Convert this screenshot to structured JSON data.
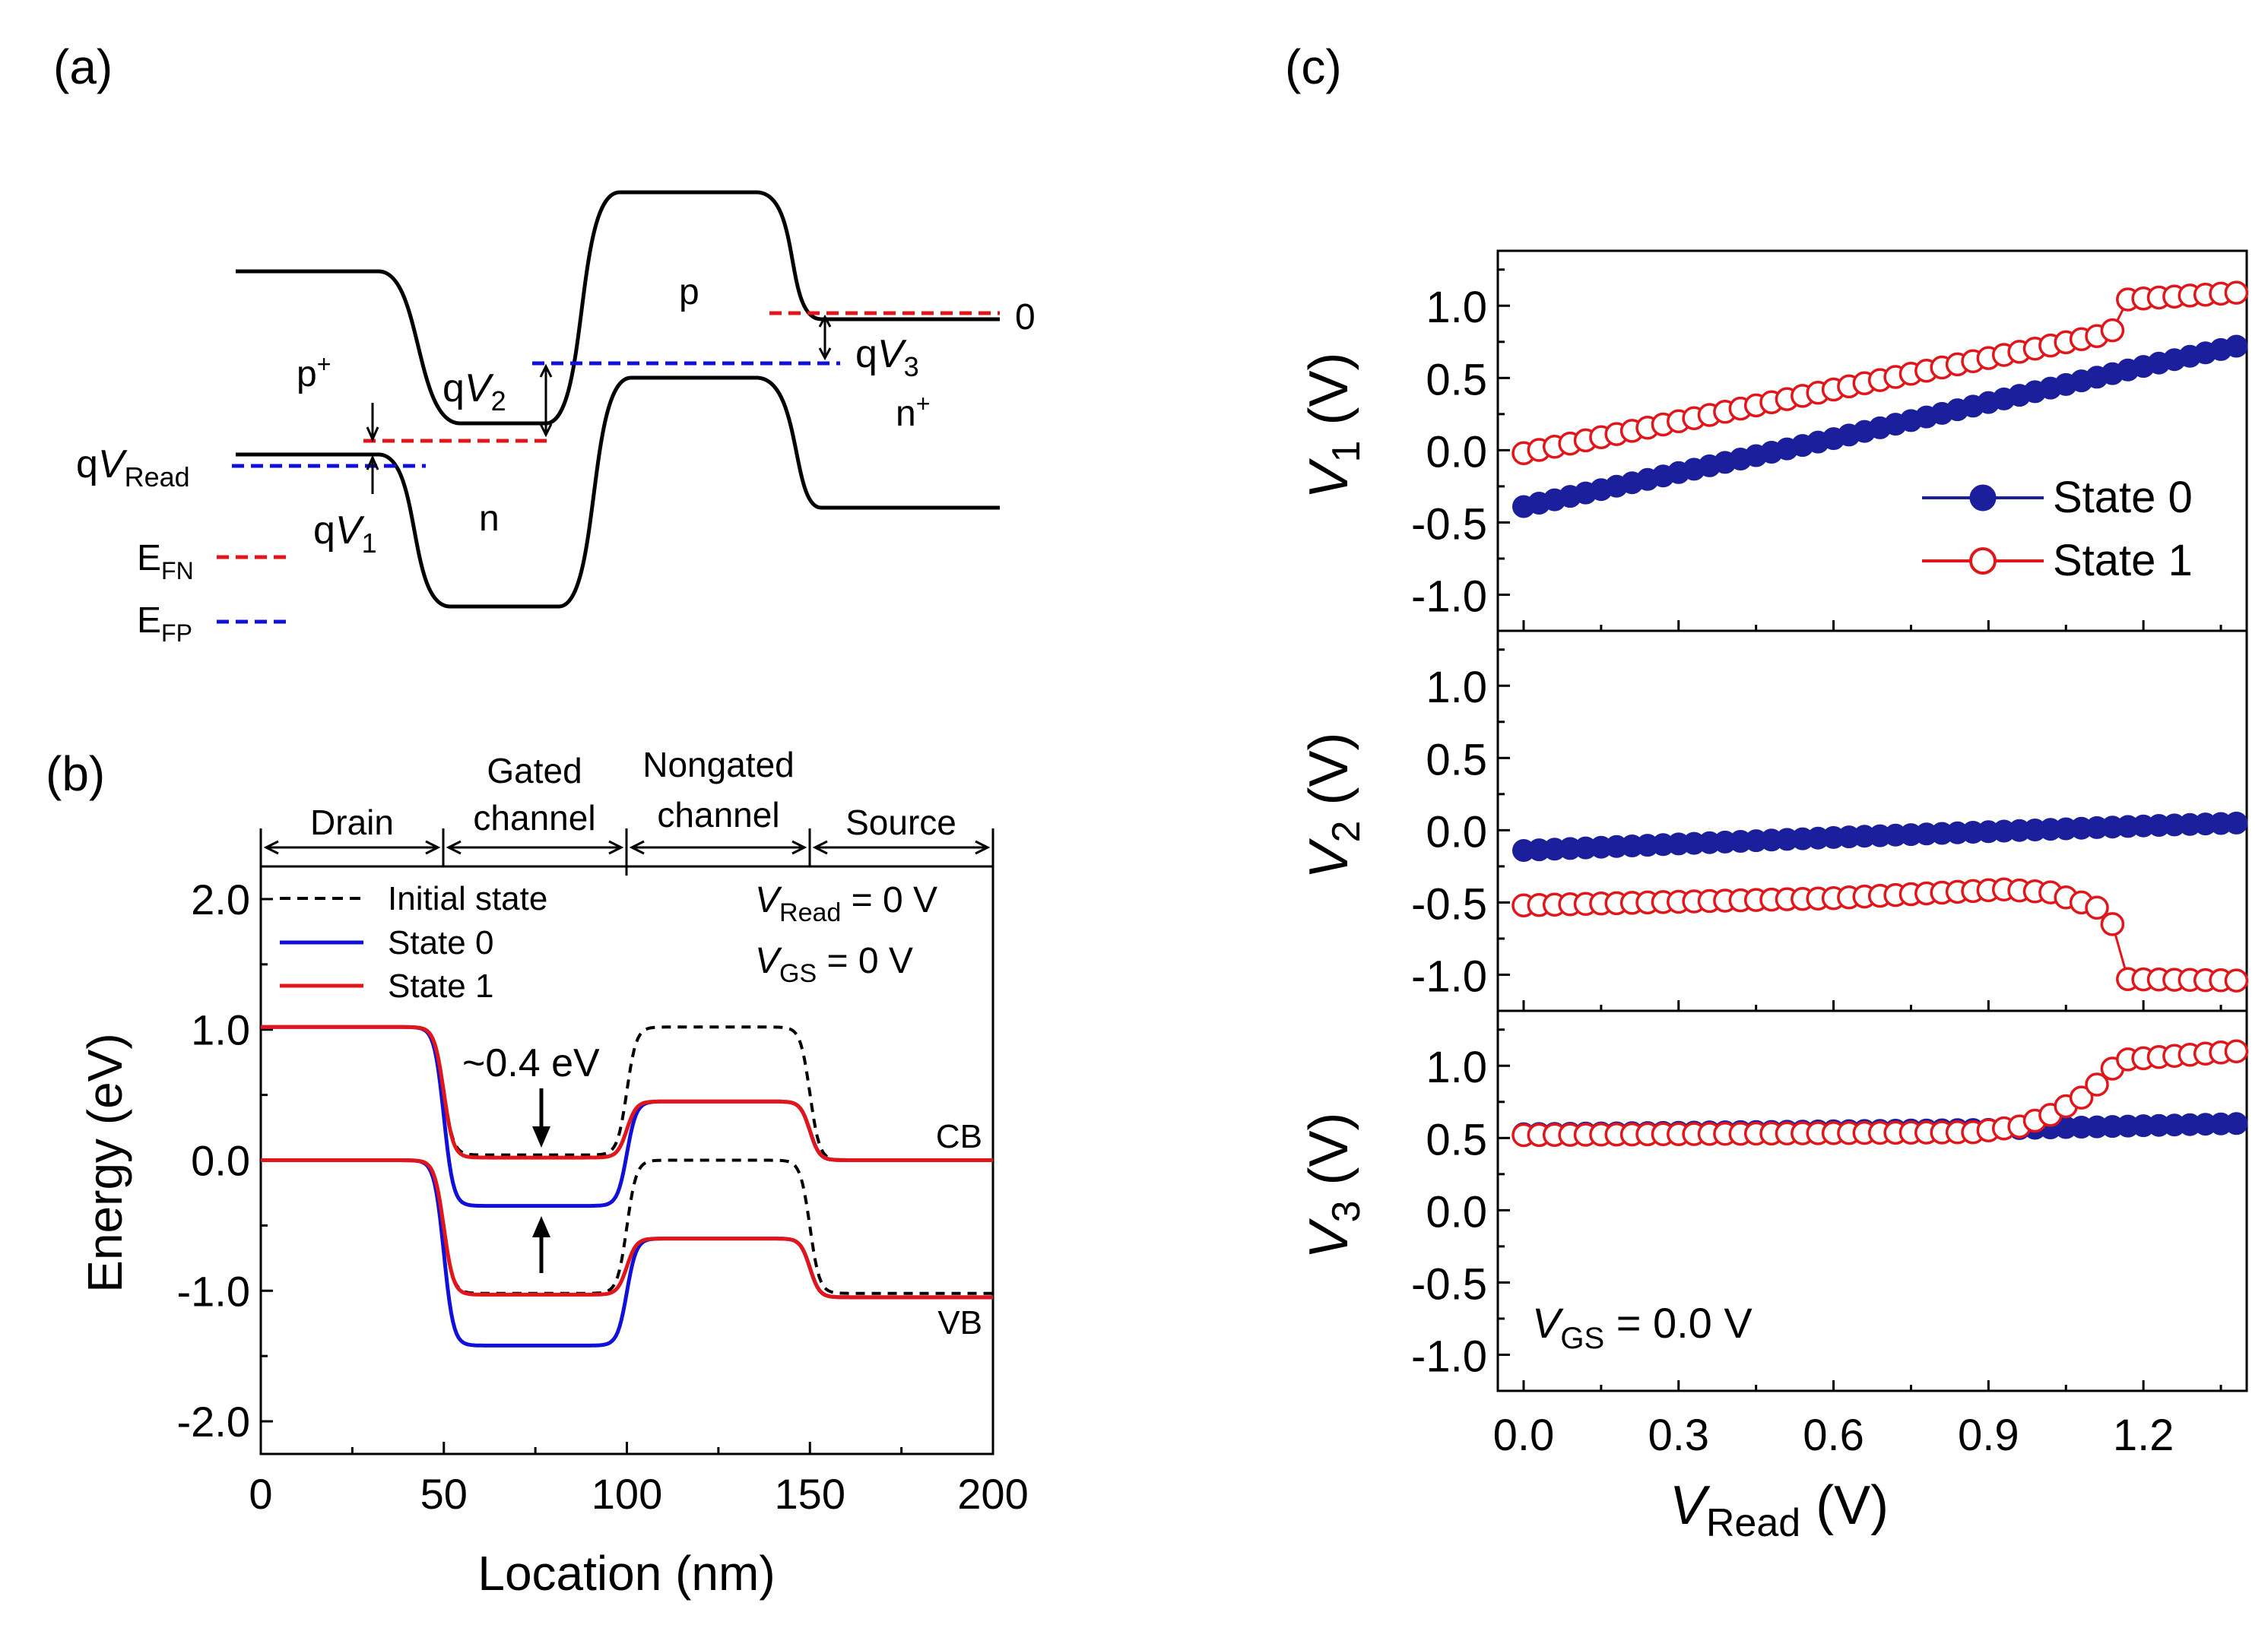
{
  "colors": {
    "red": "#e0161b",
    "blue": "#1010d8",
    "navy": "#1b1f9c",
    "black": "#000000"
  },
  "panel_a": {
    "label": "(a)",
    "regions": {
      "p_plus": "p",
      "p_plus_sup": "+",
      "n": "n",
      "p": "p",
      "n_plus": "n",
      "n_plus_sup": "+"
    },
    "zero": "0",
    "qv_read": {
      "prefix": "q",
      "var": "V",
      "sub": "Read"
    },
    "qv1": {
      "prefix": "q",
      "var": "V",
      "sub": "1"
    },
    "qv2": {
      "prefix": "q",
      "var": "V",
      "sub": "2"
    },
    "qv3": {
      "prefix": "q",
      "var": "V",
      "sub": "3"
    },
    "legend": [
      {
        "main": "E",
        "sub": "FN",
        "color": "#e0161b"
      },
      {
        "main": "E",
        "sub": "FP",
        "color": "#1010d8"
      }
    ]
  },
  "panel_b": {
    "label": "(b)",
    "regions": [
      {
        "name": "Drain",
        "from": 0,
        "to": 50
      },
      {
        "name": "Gated channel",
        "from": 50,
        "to": 100
      },
      {
        "name": "Nongated channel",
        "from": 100,
        "to": 150
      },
      {
        "name": "Source",
        "from": 150,
        "to": 200
      }
    ],
    "gated_line1": "Gated",
    "gated_line2": "channel",
    "nongated_line1": "Nongated",
    "nongated_line2": "channel",
    "conditions": {
      "vread": {
        "var": "V",
        "sub": "Read",
        "rest": " = 0 V"
      },
      "vgs": {
        "var": "V",
        "sub": "GS",
        "rest": " = 0 V"
      }
    },
    "annotation": "~0.4 eV",
    "cb_label": "CB",
    "vb_label": "VB",
    "chart_data": {
      "type": "line",
      "xlabel": "Location (nm)",
      "ylabel": "Energy (eV)",
      "xlim": [
        0,
        200
      ],
      "ylim": [
        -2.25,
        2.25
      ],
      "xticks": [
        "0",
        "50",
        "100",
        "150",
        "200"
      ],
      "yticks": [
        "2.0",
        "1.0",
        "0.0",
        "-1.0",
        "-2.0"
      ],
      "ytick_values": [
        2.0,
        1.0,
        0.0,
        -1.0,
        -2.0
      ],
      "series": [
        {
          "name": "Initial state",
          "color": "#000000",
          "style": "dashed",
          "cb_levels": [
            1.02,
            0.04,
            1.02,
            0.0
          ],
          "vb_levels": [
            0.0,
            -1.02,
            0.0,
            -1.02
          ]
        },
        {
          "name": "State 0",
          "color": "#1010d8",
          "style": "solid",
          "cb_levels": [
            1.02,
            -0.35,
            0.45,
            0.0
          ],
          "vb_levels": [
            0.0,
            -1.42,
            -0.6,
            -1.05
          ]
        },
        {
          "name": "State 1",
          "color": "#e0161b",
          "style": "solid",
          "cb_levels": [
            1.02,
            0.02,
            0.45,
            0.0
          ],
          "vb_levels": [
            0.0,
            -1.03,
            -0.6,
            -1.05
          ]
        }
      ]
    }
  },
  "panel_c": {
    "label": "(c)",
    "legend": [
      {
        "name": "State 0",
        "color": "#1b1f9c",
        "marker": "filled-circle"
      },
      {
        "name": "State 1",
        "color": "#e0161b",
        "marker": "open-circle"
      }
    ],
    "note": {
      "var": "V",
      "sub": "GS",
      "rest": " = 0.0 V"
    },
    "chart_data": {
      "type": "scatter",
      "xlabel": {
        "var": "V",
        "sub": "Read",
        "rest": " (V)"
      },
      "xlim": [
        -0.05,
        1.4
      ],
      "xticks": [
        "0.0",
        "0.3",
        "0.6",
        "0.9",
        "1.2"
      ],
      "xtick_values": [
        0.0,
        0.3,
        0.6,
        0.9,
        1.2
      ],
      "ylim": [
        -1.25,
        1.38
      ],
      "yticks": [
        "1.0",
        "0.5",
        "0.0",
        "-0.5",
        "-1.0"
      ],
      "ytick_values": [
        1.0,
        0.5,
        0.0,
        -0.5,
        -1.0
      ],
      "x_start": 0.0,
      "x_step": 0.03,
      "n_points": 47,
      "subplots": [
        {
          "ylabel": {
            "var": "V",
            "sub": "1",
            "rest": " (V)"
          },
          "series": [
            {
              "name": "State 0",
              "keypoints": [
                [
                  0.0,
                  -0.39
                ],
                [
                  0.6,
                  0.08
                ],
                [
                  1.2,
                  0.58
                ],
                [
                  1.38,
                  0.72
                ]
              ]
            },
            {
              "name": "State 1",
              "keypoints": [
                [
                  0.0,
                  -0.02
                ],
                [
                  0.6,
                  0.42
                ],
                [
                  1.11,
                  0.79
                ],
                [
                  1.14,
                  0.83
                ],
                [
                  1.155,
                  1.04
                ],
                [
                  1.38,
                  1.09
                ]
              ]
            }
          ]
        },
        {
          "ylabel": {
            "var": "V",
            "sub": "2",
            "rest": " (V)"
          },
          "series": [
            {
              "name": "State 0",
              "keypoints": [
                [
                  0.0,
                  -0.14
                ],
                [
                  0.6,
                  -0.05
                ],
                [
                  1.2,
                  0.03
                ],
                [
                  1.38,
                  0.05
                ]
              ]
            },
            {
              "name": "State 1",
              "keypoints": [
                [
                  0.0,
                  -0.52
                ],
                [
                  0.6,
                  -0.47
                ],
                [
                  0.93,
                  -0.41
                ],
                [
                  1.02,
                  -0.43
                ],
                [
                  1.08,
                  -0.5
                ],
                [
                  1.13,
                  -0.56
                ],
                [
                  1.14,
                  -0.65
                ],
                [
                  1.155,
                  -1.03
                ],
                [
                  1.38,
                  -1.04
                ]
              ]
            }
          ]
        },
        {
          "ylabel": {
            "var": "V",
            "sub": "3",
            "rest": " (V)"
          },
          "series": [
            {
              "name": "State 0",
              "keypoints": [
                [
                  0.0,
                  0.53
                ],
                [
                  0.9,
                  0.56
                ],
                [
                  1.38,
                  0.6
                ]
              ]
            },
            {
              "name": "State 1",
              "keypoints": [
                [
                  0.0,
                  0.52
                ],
                [
                  0.87,
                  0.54
                ],
                [
                  0.96,
                  0.58
                ],
                [
                  1.02,
                  0.66
                ],
                [
                  1.08,
                  0.78
                ],
                [
                  1.12,
                  0.9
                ],
                [
                  1.155,
                  1.04
                ],
                [
                  1.38,
                  1.1
                ]
              ]
            }
          ]
        }
      ]
    }
  }
}
